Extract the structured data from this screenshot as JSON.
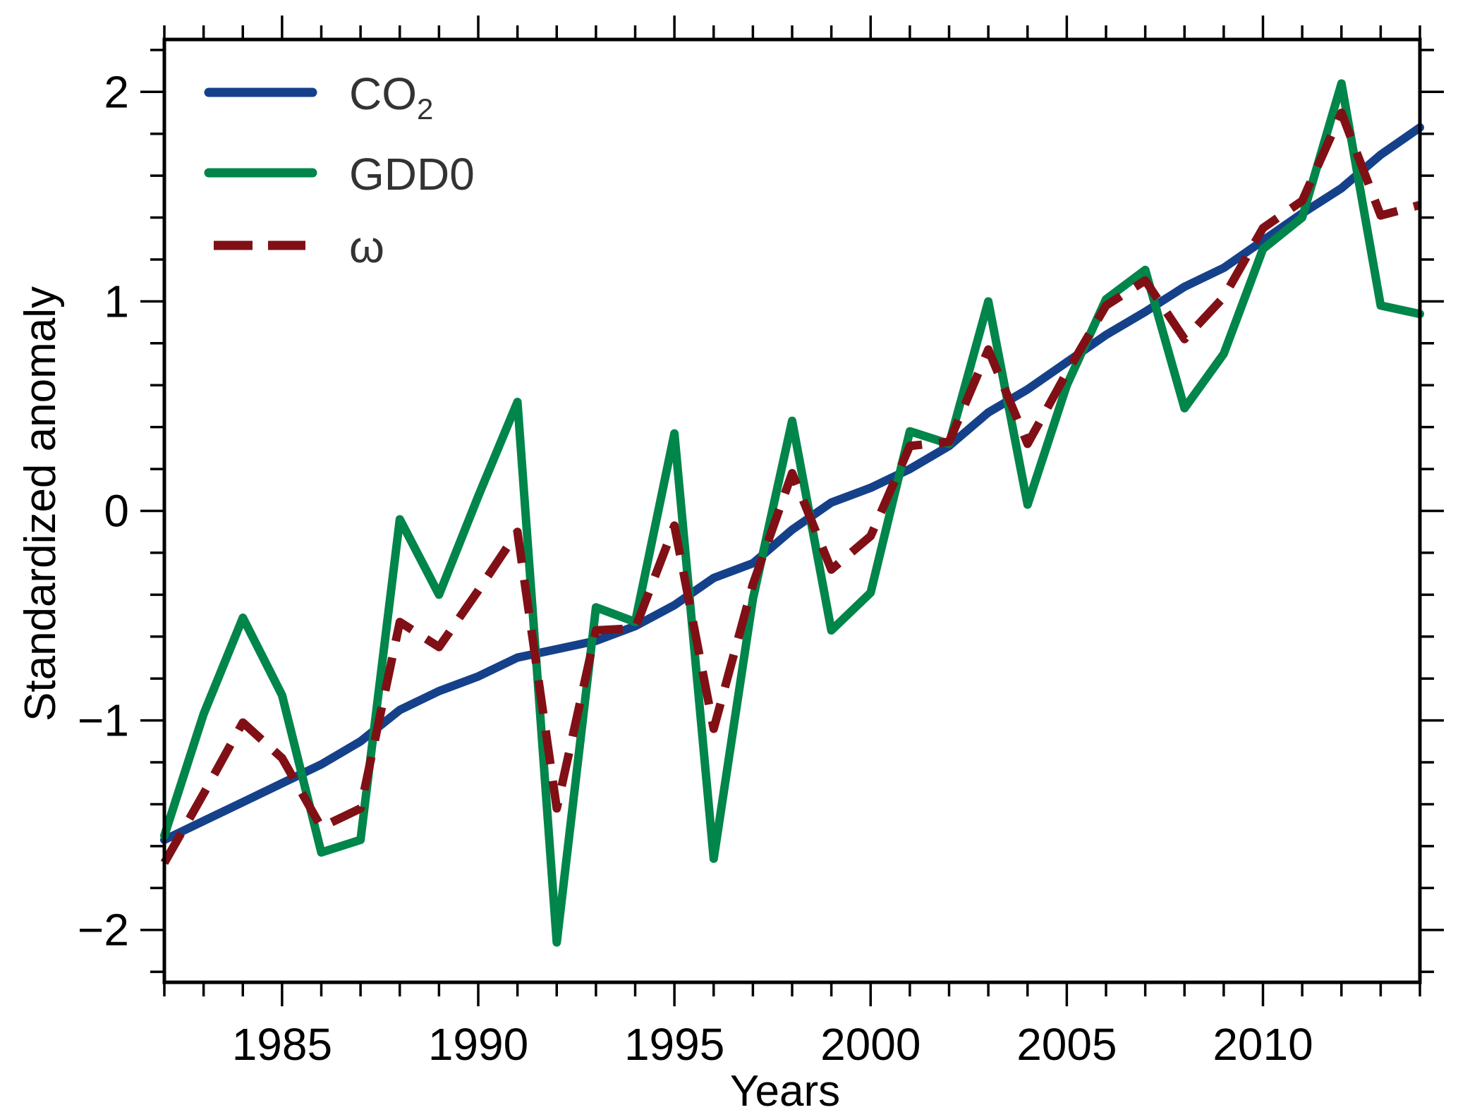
{
  "chart_data": {
    "type": "line",
    "title": "",
    "xlabel": "Years",
    "ylabel": "Standardized anomaly",
    "xlim": [
      1982,
      2014
    ],
    "ylim": [
      -2.25,
      2.25
    ],
    "x_major_ticks": [
      1985,
      1990,
      1995,
      2000,
      2005,
      2010
    ],
    "x_tick_labels": [
      "1985",
      "1990",
      "1995",
      "2000",
      "2005",
      "2010"
    ],
    "x_minor_step": 1,
    "y_major_ticks": [
      -2,
      -1,
      0,
      1,
      2
    ],
    "y_tick_labels": [
      "−2",
      "−1",
      "0",
      "1",
      "2"
    ],
    "y_minor_step": 0.2,
    "grid": false,
    "ticks_mirrored": true,
    "legend_position": "top-left",
    "x": [
      1982,
      1983,
      1984,
      1985,
      1986,
      1987,
      1988,
      1989,
      1990,
      1991,
      1992,
      1993,
      1994,
      1995,
      1996,
      1997,
      1998,
      1999,
      2000,
      2001,
      2002,
      2003,
      2004,
      2005,
      2006,
      2007,
      2008,
      2009,
      2010,
      2011,
      2012,
      2013,
      2014
    ],
    "series": [
      {
        "name": "CO2",
        "label_main": "CO",
        "label_sub": "2",
        "color": "#15418a",
        "style": "solid",
        "values": [
          -1.57,
          -1.48,
          -1.39,
          -1.3,
          -1.21,
          -1.1,
          -0.95,
          -0.86,
          -0.79,
          -0.7,
          -0.66,
          -0.62,
          -0.55,
          -0.45,
          -0.32,
          -0.25,
          -0.09,
          0.04,
          0.11,
          0.2,
          0.31,
          0.47,
          0.58,
          0.71,
          0.84,
          0.95,
          1.07,
          1.16,
          1.29,
          1.42,
          1.54,
          1.7,
          1.83
        ]
      },
      {
        "name": "GDD0",
        "label_main": "GDD0",
        "label_sub": "",
        "color": "#00854a",
        "style": "solid",
        "values": [
          -1.55,
          -0.97,
          -0.51,
          -0.88,
          -1.63,
          -1.57,
          -0.04,
          -0.4,
          0.07,
          0.52,
          -2.06,
          -0.46,
          -0.53,
          0.37,
          -1.66,
          -0.42,
          0.43,
          -0.57,
          -0.39,
          0.38,
          0.32,
          1.0,
          0.03,
          0.6,
          1.01,
          1.15,
          0.49,
          0.75,
          1.25,
          1.4,
          2.04,
          0.98,
          0.94
        ]
      },
      {
        "name": "ω",
        "label_main": "ω",
        "label_sub": "",
        "color": "#801015",
        "style": "dashed",
        "values": [
          -1.68,
          -1.35,
          -1.01,
          -1.18,
          -1.51,
          -1.42,
          -0.53,
          -0.65,
          -0.38,
          -0.1,
          -1.42,
          -0.57,
          -0.56,
          -0.07,
          -1.04,
          -0.35,
          0.18,
          -0.28,
          -0.12,
          0.31,
          0.33,
          0.77,
          0.32,
          0.66,
          0.98,
          1.1,
          0.82,
          1.02,
          1.35,
          1.48,
          1.9,
          1.41,
          1.46
        ]
      }
    ]
  }
}
